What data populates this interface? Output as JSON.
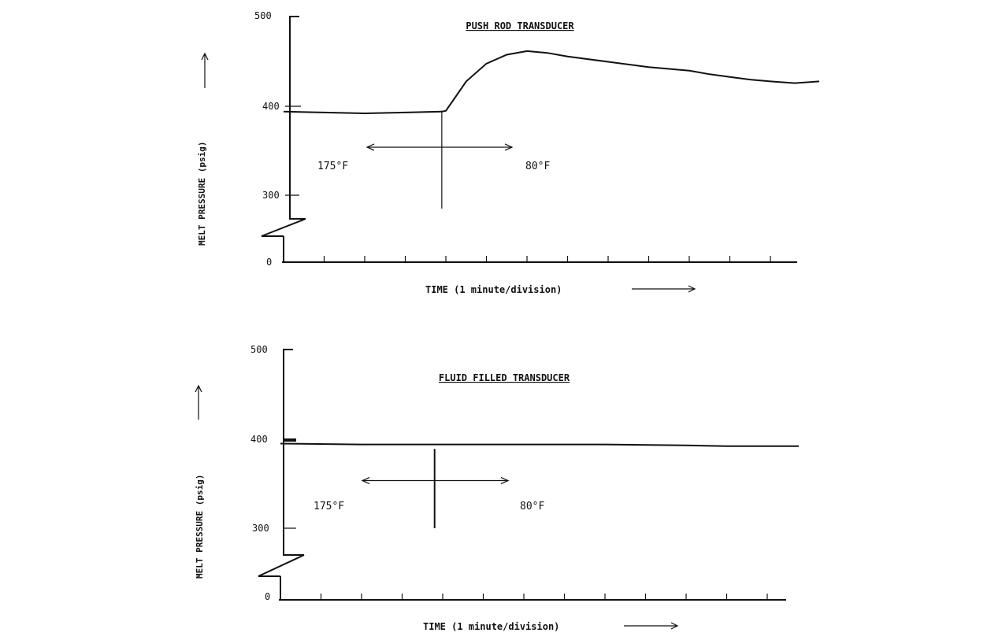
{
  "chart_data": [
    {
      "type": "line",
      "title": "PUSH ROD TRANSDUCER",
      "xlabel": "TIME (1 minute/division)",
      "ylabel": "MELT PRESSURE (psig)",
      "yticks": [
        "0",
        "300",
        "400",
        "500"
      ],
      "ylim": [
        300,
        500
      ],
      "x_divisions": 13,
      "series": [
        {
          "x": [
            0,
            1,
            2,
            3,
            3.9,
            4.0,
            4.2,
            4.5,
            5.0,
            5.5,
            6.0,
            6.5,
            7.0,
            8.0,
            9.0,
            10.0,
            10.5,
            11.0,
            11.5,
            12.0,
            12.6,
            13.5
          ],
          "y": [
            394,
            393,
            392,
            393,
            394,
            395,
            408,
            428,
            448,
            458,
            462,
            460,
            456,
            450,
            444,
            440,
            436,
            433,
            430,
            428,
            426,
            428
          ]
        }
      ],
      "annotations": {
        "change_x": 3.9,
        "left_label": "175°F",
        "right_label": "80°F",
        "arrow_y": 354
      },
      "axis_break": true
    },
    {
      "type": "line",
      "title": "FLUID FILLED TRANSDUCER",
      "xlabel": "TIME (1 minute/division)",
      "ylabel": "MELT PRESSURE (psig)",
      "yticks": [
        "0",
        "300",
        "400",
        "500"
      ],
      "ylim": [
        300,
        500
      ],
      "x_divisions": 13,
      "series": [
        {
          "x": [
            0,
            2,
            4,
            6,
            8,
            10,
            11,
            12,
            13
          ],
          "y": [
            396,
            395,
            395,
            395,
            395,
            394,
            393,
            393,
            393
          ]
        }
      ],
      "annotations": {
        "change_x": 3.8,
        "left_label": "175°F",
        "right_label": "80°F",
        "arrow_y": 354
      },
      "axis_break": true
    }
  ]
}
